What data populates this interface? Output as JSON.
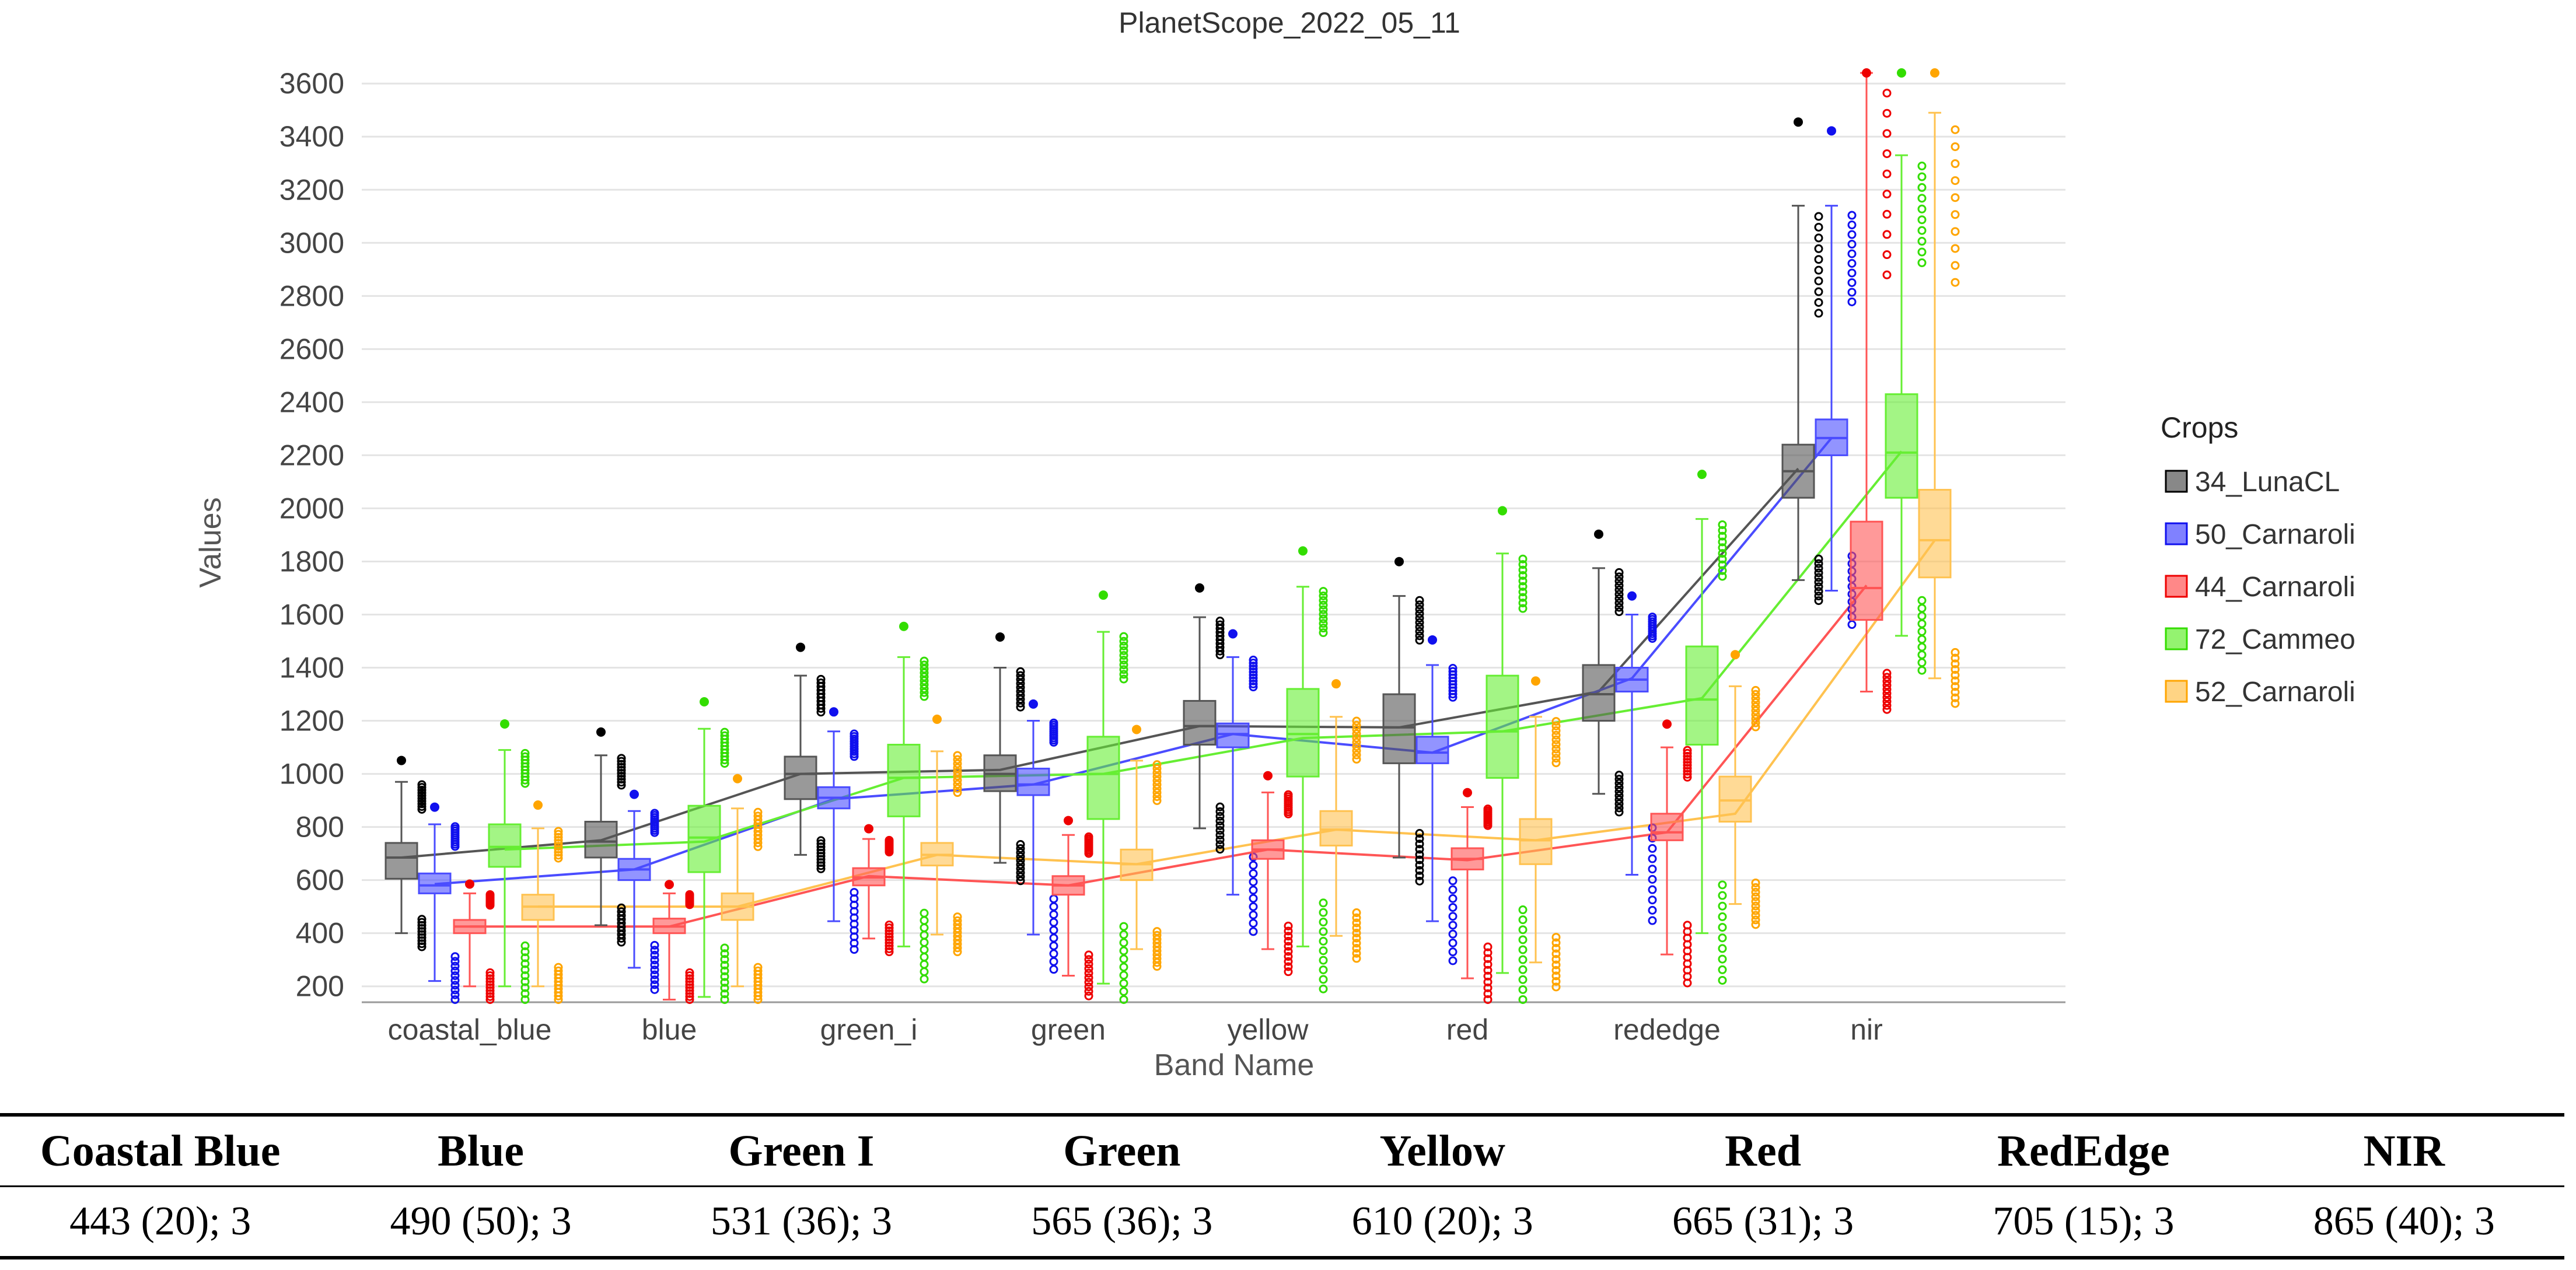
{
  "chart_data": {
    "type": "box",
    "title": "PlanetScope_2022_05_11",
    "xlabel": "Band Name",
    "ylabel": "Values",
    "ylim": [
      140,
      3640
    ],
    "yticks": [
      200,
      400,
      600,
      800,
      1000,
      1200,
      1400,
      1600,
      1800,
      2000,
      2200,
      2400,
      2600,
      2800,
      3000,
      3200,
      3400,
      3600
    ],
    "categories": [
      "coastal_blue",
      "blue",
      "green_i",
      "green",
      "yellow",
      "red",
      "rededge",
      "nir"
    ],
    "legend_title": "Crops",
    "legend_position": "right",
    "series": [
      {
        "name": "34_LunaCL",
        "color": "#555555",
        "dot": "#000000",
        "boxes": [
          {
            "min": 400,
            "q1": 605,
            "median": 685,
            "q3": 740,
            "max": 970
          },
          {
            "min": 430,
            "q1": 685,
            "median": 745,
            "q3": 820,
            "max": 1070
          },
          {
            "min": 695,
            "q1": 905,
            "median": 1000,
            "q3": 1065,
            "max": 1370
          },
          {
            "min": 665,
            "q1": 935,
            "median": 1000,
            "q3": 1070,
            "max": 1400
          },
          {
            "min": 795,
            "q1": 1110,
            "median": 1180,
            "q3": 1275,
            "max": 1590
          },
          {
            "min": 685,
            "q1": 1040,
            "median": 1175,
            "q3": 1300,
            "max": 1670
          },
          {
            "min": 925,
            "q1": 1200,
            "median": 1300,
            "q3": 1410,
            "max": 1775
          },
          {
            "min": 1730,
            "q1": 2040,
            "median": 2140,
            "q3": 2240,
            "max": 3140
          }
        ],
        "means": [
          685,
          750,
          1000,
          1015,
          1180,
          1175,
          1310,
          2150
        ]
      },
      {
        "name": "50_Carnaroli",
        "color": "#4a4cff",
        "dot": "#1010ee",
        "boxes": [
          {
            "min": 220,
            "q1": 550,
            "median": 580,
            "q3": 625,
            "max": 810
          },
          {
            "min": 270,
            "q1": 600,
            "median": 640,
            "q3": 680,
            "max": 860
          },
          {
            "min": 445,
            "q1": 870,
            "median": 910,
            "q3": 950,
            "max": 1160
          },
          {
            "min": 395,
            "q1": 920,
            "median": 960,
            "q3": 1020,
            "max": 1200
          },
          {
            "min": 545,
            "q1": 1100,
            "median": 1150,
            "q3": 1190,
            "max": 1440
          },
          {
            "min": 445,
            "q1": 1040,
            "median": 1080,
            "q3": 1140,
            "max": 1410
          },
          {
            "min": 620,
            "q1": 1310,
            "median": 1355,
            "q3": 1400,
            "max": 1600
          },
          {
            "min": 1690,
            "q1": 2200,
            "median": 2265,
            "q3": 2335,
            "max": 3140
          }
        ],
        "means": [
          585,
          640,
          905,
          960,
          1150,
          1080,
          1360,
          2265
        ]
      },
      {
        "name": "44_Carnaroli",
        "color": "#ff5555",
        "dot": "#ee0000",
        "boxes": [
          {
            "min": 200,
            "q1": 400,
            "median": 425,
            "q3": 450,
            "max": 550
          },
          {
            "min": 150,
            "q1": 400,
            "median": 425,
            "q3": 455,
            "max": 550
          },
          {
            "min": 380,
            "q1": 580,
            "median": 610,
            "q3": 645,
            "max": 755
          },
          {
            "min": 240,
            "q1": 545,
            "median": 580,
            "q3": 615,
            "max": 770
          },
          {
            "min": 340,
            "q1": 680,
            "median": 715,
            "q3": 750,
            "max": 930
          },
          {
            "min": 230,
            "q1": 640,
            "median": 680,
            "q3": 720,
            "max": 875
          },
          {
            "min": 320,
            "q1": 750,
            "median": 780,
            "q3": 850,
            "max": 1100
          },
          {
            "min": 1310,
            "q1": 1580,
            "median": 1700,
            "q3": 1950,
            "max": 3640
          }
        ],
        "means": [
          425,
          425,
          615,
          580,
          715,
          675,
          780,
          1710
        ]
      },
      {
        "name": "72_Cammeo",
        "color": "#66ee33",
        "dot": "#33dd00",
        "boxes": [
          {
            "min": 200,
            "q1": 650,
            "median": 725,
            "q3": 810,
            "max": 1090
          },
          {
            "min": 160,
            "q1": 630,
            "median": 760,
            "q3": 880,
            "max": 1170
          },
          {
            "min": 350,
            "q1": 840,
            "median": 985,
            "q3": 1110,
            "max": 1440
          },
          {
            "min": 210,
            "q1": 830,
            "median": 1000,
            "q3": 1140,
            "max": 1535
          },
          {
            "min": 350,
            "q1": 990,
            "median": 1150,
            "q3": 1320,
            "max": 1705
          },
          {
            "min": 250,
            "q1": 985,
            "median": 1160,
            "q3": 1370,
            "max": 1830
          },
          {
            "min": 400,
            "q1": 1110,
            "median": 1280,
            "q3": 1480,
            "max": 1960
          },
          {
            "min": 1520,
            "q1": 2040,
            "median": 2210,
            "q3": 2430,
            "max": 3330
          }
        ],
        "means": [
          715,
          745,
          985,
          1000,
          1135,
          1160,
          1285,
          2215
        ]
      },
      {
        "name": "52_Carnaroli",
        "color": "#ffc250",
        "dot": "#ffa500",
        "boxes": [
          {
            "min": 200,
            "q1": 450,
            "median": 500,
            "q3": 545,
            "max": 795
          },
          {
            "min": 200,
            "q1": 450,
            "median": 500,
            "q3": 550,
            "max": 870
          },
          {
            "min": 395,
            "q1": 655,
            "median": 695,
            "q3": 740,
            "max": 1085
          },
          {
            "min": 340,
            "q1": 600,
            "median": 660,
            "q3": 715,
            "max": 1050
          },
          {
            "min": 390,
            "q1": 730,
            "median": 790,
            "q3": 860,
            "max": 1215
          },
          {
            "min": 290,
            "q1": 660,
            "median": 750,
            "q3": 830,
            "max": 1215
          },
          {
            "min": 510,
            "q1": 820,
            "median": 900,
            "q3": 990,
            "max": 1330
          },
          {
            "min": 1360,
            "q1": 1740,
            "median": 1880,
            "q3": 2070,
            "max": 3490
          }
        ],
        "means": [
          500,
          500,
          695,
          660,
          790,
          750,
          850,
          1880
        ]
      }
    ]
  },
  "band_table": {
    "headers": [
      "Coastal Blue",
      "Blue",
      "Green I",
      "Green",
      "Yellow",
      "Red",
      "RedEdge",
      "NIR"
    ],
    "values": [
      "443 (20); 3",
      "490 (50); 3",
      "531 (36); 3",
      "565 (36); 3",
      "610 (20); 3",
      "665 (31); 3",
      "705 (15); 3",
      "865 (40); 3"
    ]
  }
}
